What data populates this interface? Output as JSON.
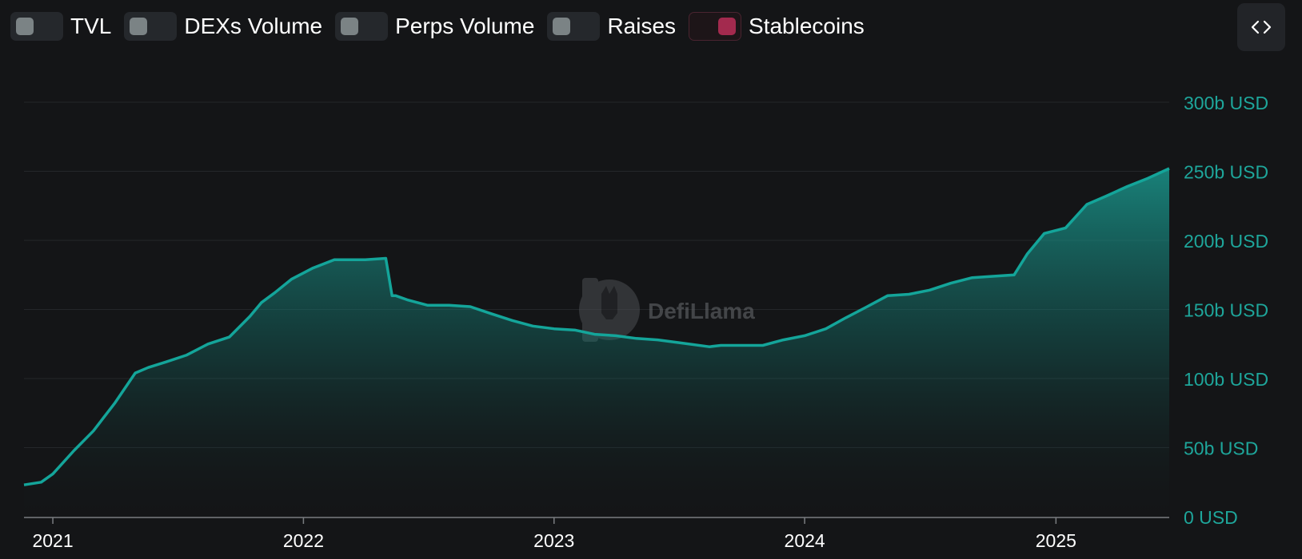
{
  "toggles": [
    {
      "label": "TVL",
      "on": false
    },
    {
      "label": "DEXs Volume",
      "on": false
    },
    {
      "label": "Perps Volume",
      "on": false
    },
    {
      "label": "Raises",
      "on": false
    },
    {
      "label": "Stablecoins",
      "on": true
    }
  ],
  "embed_icon": "code-brackets-icon",
  "watermark": "DefiLlama",
  "colors": {
    "background": "#141517",
    "series_line": "#14a59a",
    "axis_label": "#1ea69b",
    "toggle_on": "#a32a4e",
    "toggle_off_knob": "#7b8385"
  },
  "chart_data": {
    "type": "area",
    "title": "",
    "xlabel": "",
    "ylabel": "",
    "x_ticks": [
      "2021",
      "2022",
      "2023",
      "2024",
      "2025"
    ],
    "y_ticks": [
      "0 USD",
      "50b USD",
      "100b USD",
      "150b USD",
      "200b USD",
      "250b USD",
      "300b USD"
    ],
    "ylim": [
      0,
      300
    ],
    "y_unit": "b USD",
    "grid": true,
    "series": [
      {
        "x": [
          "2020-11-20",
          "2020-12-15",
          "2021-01-01",
          "2021-02-01",
          "2021-03-01",
          "2021-04-01",
          "2021-05-01",
          "2021-05-20",
          "2021-06-15",
          "2021-07-15",
          "2021-08-15",
          "2021-09-15",
          "2021-10-15",
          "2021-11-01",
          "2021-11-20",
          "2021-12-15",
          "2022-01-15",
          "2022-02-15",
          "2022-03-15",
          "2022-04-01",
          "2022-05-01",
          "2022-05-10",
          "2022-05-15",
          "2022-06-01",
          "2022-07-01",
          "2022-08-01",
          "2022-09-01",
          "2022-10-01",
          "2022-11-01",
          "2022-12-01",
          "2023-01-01",
          "2023-02-01",
          "2023-03-01",
          "2023-04-01",
          "2023-05-01",
          "2023-06-01",
          "2023-07-01",
          "2023-08-15",
          "2023-09-01",
          "2023-10-01",
          "2023-11-01",
          "2023-12-01",
          "2024-01-01",
          "2024-02-01",
          "2024-03-01",
          "2024-04-01",
          "2024-05-01",
          "2024-06-01",
          "2024-07-01",
          "2024-08-01",
          "2024-09-01",
          "2024-10-01",
          "2024-11-01",
          "2024-11-20",
          "2024-12-15",
          "2025-01-15",
          "2025-02-15",
          "2025-03-15",
          "2025-04-15",
          "2025-05-15",
          "2025-06-15"
        ],
        "values": [
          23,
          25,
          31,
          48,
          62,
          82,
          104,
          108,
          112,
          117,
          125,
          130,
          145,
          155,
          162,
          172,
          180,
          186,
          186,
          186,
          187,
          160,
          160,
          157,
          153,
          153,
          152,
          147,
          142,
          138,
          136,
          135,
          132,
          131,
          129,
          128,
          126,
          123,
          124,
          124,
          124,
          128,
          131,
          136,
          144,
          152,
          160,
          161,
          164,
          169,
          173,
          174,
          175,
          190,
          205,
          209,
          226,
          232,
          239,
          245,
          252
        ]
      }
    ]
  }
}
